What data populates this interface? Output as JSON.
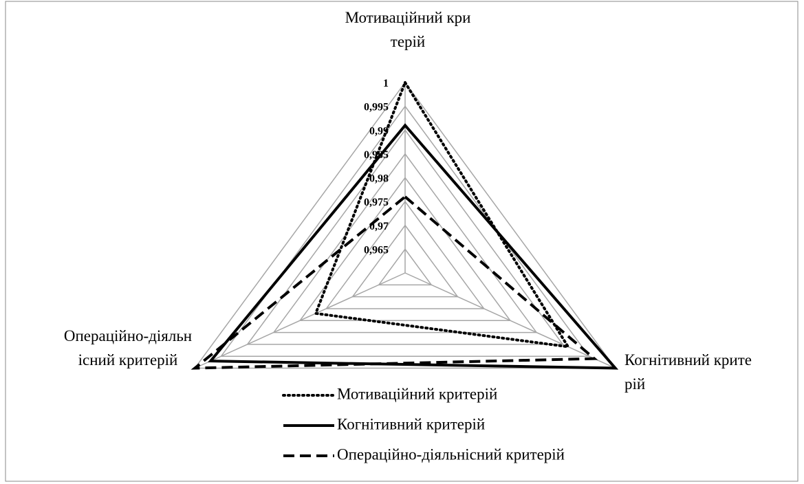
{
  "chart_data": {
    "type": "radar",
    "categories": [
      "Мотиваційний критерій",
      "Когнітивний критерій",
      "Операційно-діяльнісний критерій"
    ],
    "series": [
      {
        "name": "Мотиваційний критерій",
        "color": "#000000",
        "dash": "dotted",
        "values": [
          1,
          0.991,
          0.977
        ]
      },
      {
        "name": "Когнітивний критерій",
        "color": "#000000",
        "dash": "solid",
        "values": [
          0.991,
          1,
          0.997
        ]
      },
      {
        "name": "Операційно-діяльнісний критерій",
        "color": "#000000",
        "dash": "dashed",
        "values": [
          0.976,
          0.996,
          1
        ]
      }
    ],
    "ylim": [
      0.96,
      1
    ],
    "yticks": [
      {
        "value": 0.965,
        "label": "0,965"
      },
      {
        "value": 0.97,
        "label": "0,97"
      },
      {
        "value": 0.975,
        "label": "0,975"
      },
      {
        "value": 0.98,
        "label": "0,98"
      },
      {
        "value": 0.985,
        "label": "0,985"
      },
      {
        "value": 0.99,
        "label": "0,99"
      },
      {
        "value": 0.995,
        "label": "0,995"
      },
      1
    ],
    "grid": true,
    "legend": "bottom"
  }
}
